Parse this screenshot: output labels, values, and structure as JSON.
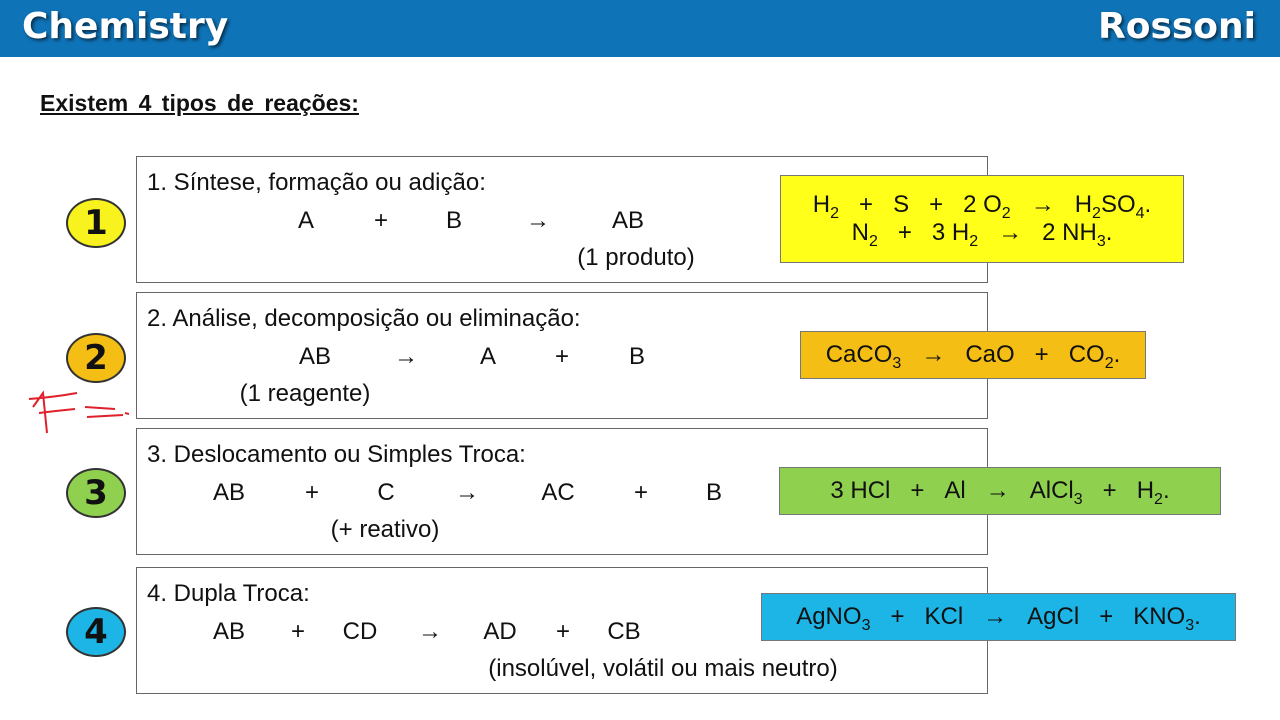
{
  "header": {
    "left": "Chemistry",
    "right": "Rossoni",
    "color": "#0f73b7"
  },
  "subtitle": "Existem 4 tipos de reações:",
  "rows": [
    {
      "number": "1",
      "circle_color": "#f8f21e",
      "title": "1. Síntese,  formação ou adição:",
      "tokens": [
        "A",
        "+",
        "B",
        "→",
        "AB"
      ],
      "note": "(1 produto)",
      "eq_color": "#ffff1a",
      "equations": [
        [
          [
            "H",
            "2"
          ],
          "+",
          "S",
          "+",
          [
            "2 O",
            "2"
          ],
          "→",
          [
            "H",
            "2"
          ],
          [
            "SO",
            "4"
          ],
          "."
        ],
        [
          [
            "N",
            "2"
          ],
          "+",
          [
            "3 H",
            "2"
          ],
          "→",
          [
            "2 NH",
            "3"
          ],
          "."
        ]
      ]
    },
    {
      "number": "2",
      "circle_color": "#f4be14",
      "title": "2. Análise, decomposição ou eliminação:",
      "tokens": [
        "AB",
        "→",
        "A",
        "+",
        "B"
      ],
      "note": "(1 reagente)",
      "eq_color": "#f4be14",
      "equations": [
        [
          [
            "CaCO",
            "3"
          ],
          "→",
          "CaO",
          "+",
          [
            "CO",
            "2"
          ],
          "."
        ]
      ]
    },
    {
      "number": "3",
      "circle_color": "#8fd14f",
      "title": "3. Deslocamento ou Simples Troca:",
      "tokens": [
        "AB",
        "+",
        "C",
        "→",
        "AC",
        "+",
        "B"
      ],
      "note": "(+ reativo)",
      "eq_color": "#8fd14f",
      "equations": [
        [
          "3 HCl",
          "+",
          "Al",
          "→",
          [
            "AlCl",
            "3"
          ],
          "+",
          [
            "H",
            "2"
          ],
          "."
        ]
      ]
    },
    {
      "number": "4",
      "circle_color": "#1db5e6",
      "title": "4. Dupla Troca:",
      "tokens": [
        "AB",
        "+",
        "CD",
        "→",
        "AD",
        "+",
        "CB"
      ],
      "note": "(insolúvel, volátil ou mais neutro)",
      "eq_color": "#1db5e6",
      "equations": [
        [
          [
            "AgNO",
            "3"
          ],
          "+",
          "KCl",
          "→",
          "AgCl",
          "+",
          [
            "KNO",
            "3"
          ],
          "."
        ]
      ]
    }
  ]
}
